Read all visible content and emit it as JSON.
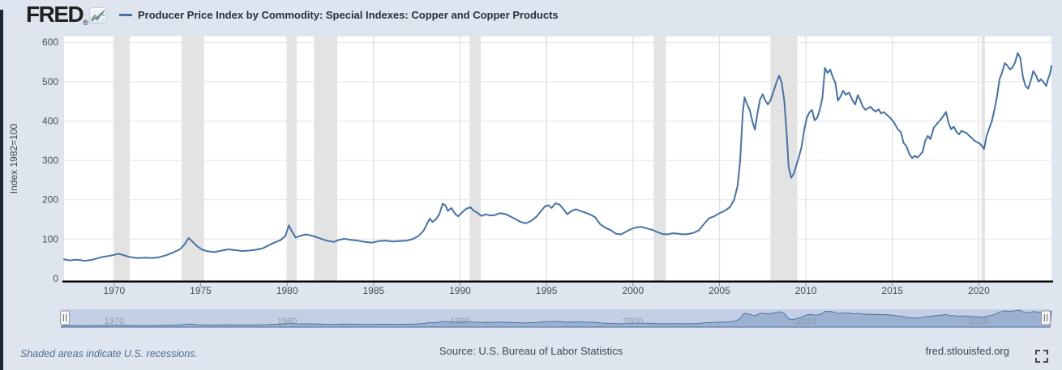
{
  "header": {
    "brand": "FRED",
    "registered_mark": "®",
    "legend_label": "Producer Price Index by Commodity: Special Indexes: Copper and Copper Products"
  },
  "footer": {
    "recession_note": "Shaded areas indicate U.S. recessions.",
    "source": "Source: U.S. Bureau of Labor Statistics",
    "site": "fred.stlouisfed.org"
  },
  "icons": {
    "brand_icon": "sparkline-chart-icon",
    "footer_icon": "fullscreen-expand-icon",
    "navigator_handles": "drag-handle-icon"
  },
  "colors": {
    "page_bg": "#dfe5ee",
    "plot_bg": "#ffffff",
    "line": "#4572a7",
    "recession": "#e3e3e3",
    "gridline": "#e4e4e4",
    "axis_line": "#000000",
    "tick_label": "#484f57",
    "axis_title": "#3d4852",
    "nav_track": "#c2cfe4",
    "nav_fill": "#8fa7cb",
    "nav_line": "#4e73a6",
    "nav_label": "#8b93a0",
    "left_bar": "#1c2736",
    "spark_green": "#7aa65a",
    "spark_blue": "#5a7fa8"
  },
  "chart_data": {
    "type": "line",
    "title": "Producer Price Index by Commodity: Special Indexes: Copper and Copper Products",
    "xlabel": "",
    "ylabel": "Index 1982=100",
    "x_range": [
      1967.1,
      2024.2
    ],
    "ylim": [
      0,
      600
    ],
    "y_ticks": [
      0,
      100,
      200,
      300,
      400,
      500,
      600
    ],
    "x_ticks": [
      1970,
      1975,
      1980,
      1985,
      1990,
      1995,
      2000,
      2005,
      2010,
      2015,
      2020
    ],
    "grid": true,
    "legend_position": "top-left",
    "navigator_ticks": [
      1970,
      1980,
      1990,
      2000,
      2010,
      2020
    ],
    "recessions": [
      [
        1969.95,
        1970.9
      ],
      [
        1973.9,
        1975.2
      ],
      [
        1980.05,
        1980.55
      ],
      [
        1981.55,
        1982.9
      ],
      [
        1990.55,
        1991.2
      ],
      [
        2001.2,
        2001.9
      ],
      [
        2007.95,
        2009.5
      ],
      [
        2020.15,
        2020.35
      ]
    ],
    "series": [
      {
        "name": "Producer Price Index by Commodity: Special Indexes: Copper and Copper Products",
        "points": [
          [
            1967.0,
            49
          ],
          [
            1967.25,
            47
          ],
          [
            1967.5,
            46
          ],
          [
            1967.75,
            48
          ],
          [
            1968.0,
            47
          ],
          [
            1968.25,
            45
          ],
          [
            1968.5,
            46
          ],
          [
            1968.75,
            48
          ],
          [
            1969.0,
            51
          ],
          [
            1969.33,
            55
          ],
          [
            1969.66,
            57
          ],
          [
            1970.0,
            60
          ],
          [
            1970.2,
            63
          ],
          [
            1970.5,
            60
          ],
          [
            1970.8,
            56
          ],
          [
            1971.1,
            53
          ],
          [
            1971.4,
            52
          ],
          [
            1971.8,
            53
          ],
          [
            1972.2,
            52
          ],
          [
            1972.6,
            54
          ],
          [
            1973.0,
            59
          ],
          [
            1973.4,
            66
          ],
          [
            1973.8,
            74
          ],
          [
            1974.1,
            88
          ],
          [
            1974.3,
            103
          ],
          [
            1974.5,
            95
          ],
          [
            1974.8,
            82
          ],
          [
            1975.1,
            73
          ],
          [
            1975.4,
            69
          ],
          [
            1975.8,
            67
          ],
          [
            1976.2,
            71
          ],
          [
            1976.6,
            74
          ],
          [
            1977.0,
            72
          ],
          [
            1977.4,
            70
          ],
          [
            1977.8,
            71
          ],
          [
            1978.2,
            73
          ],
          [
            1978.6,
            77
          ],
          [
            1979.0,
            86
          ],
          [
            1979.3,
            92
          ],
          [
            1979.6,
            97
          ],
          [
            1979.9,
            108
          ],
          [
            1980.1,
            135
          ],
          [
            1980.25,
            122
          ],
          [
            1980.5,
            104
          ],
          [
            1980.8,
            109
          ],
          [
            1981.1,
            112
          ],
          [
            1981.5,
            108
          ],
          [
            1981.9,
            102
          ],
          [
            1982.3,
            96
          ],
          [
            1982.7,
            93
          ],
          [
            1983.0,
            98
          ],
          [
            1983.3,
            101
          ],
          [
            1983.7,
            98
          ],
          [
            1984.1,
            96
          ],
          [
            1984.5,
            93
          ],
          [
            1984.9,
            91
          ],
          [
            1985.3,
            95
          ],
          [
            1985.7,
            96
          ],
          [
            1986.1,
            94
          ],
          [
            1986.5,
            95
          ],
          [
            1986.9,
            96
          ],
          [
            1987.3,
            101
          ],
          [
            1987.6,
            108
          ],
          [
            1987.9,
            122
          ],
          [
            1988.1,
            140
          ],
          [
            1988.25,
            152
          ],
          [
            1988.4,
            144
          ],
          [
            1988.6,
            150
          ],
          [
            1988.8,
            163
          ],
          [
            1989.0,
            190
          ],
          [
            1989.15,
            186
          ],
          [
            1989.3,
            172
          ],
          [
            1989.5,
            179
          ],
          [
            1989.7,
            165
          ],
          [
            1989.9,
            158
          ],
          [
            1990.1,
            167
          ],
          [
            1990.35,
            177
          ],
          [
            1990.6,
            181
          ],
          [
            1990.8,
            172
          ],
          [
            1991.0,
            167
          ],
          [
            1991.25,
            159
          ],
          [
            1991.5,
            163
          ],
          [
            1991.75,
            160
          ],
          [
            1992.0,
            161
          ],
          [
            1992.3,
            166
          ],
          [
            1992.6,
            164
          ],
          [
            1992.9,
            158
          ],
          [
            1993.2,
            151
          ],
          [
            1993.5,
            144
          ],
          [
            1993.8,
            140
          ],
          [
            1994.1,
            146
          ],
          [
            1994.4,
            156
          ],
          [
            1994.7,
            172
          ],
          [
            1994.9,
            183
          ],
          [
            1995.1,
            186
          ],
          [
            1995.3,
            179
          ],
          [
            1995.5,
            191
          ],
          [
            1995.75,
            188
          ],
          [
            1996.0,
            175
          ],
          [
            1996.2,
            163
          ],
          [
            1996.45,
            172
          ],
          [
            1996.7,
            176
          ],
          [
            1996.95,
            172
          ],
          [
            1997.2,
            168
          ],
          [
            1997.5,
            163
          ],
          [
            1997.8,
            156
          ],
          [
            1998.1,
            138
          ],
          [
            1998.4,
            129
          ],
          [
            1998.7,
            123
          ],
          [
            1999.0,
            114
          ],
          [
            1999.3,
            112
          ],
          [
            1999.6,
            119
          ],
          [
            1999.9,
            126
          ],
          [
            2000.2,
            130
          ],
          [
            2000.5,
            131
          ],
          [
            2000.8,
            127
          ],
          [
            2001.1,
            124
          ],
          [
            2001.4,
            118
          ],
          [
            2001.7,
            113
          ],
          [
            2002.0,
            112
          ],
          [
            2002.3,
            115
          ],
          [
            2002.6,
            114
          ],
          [
            2002.9,
            112
          ],
          [
            2003.2,
            113
          ],
          [
            2003.5,
            116
          ],
          [
            2003.8,
            122
          ],
          [
            2004.1,
            138
          ],
          [
            2004.4,
            153
          ],
          [
            2004.7,
            158
          ],
          [
            2005.0,
            166
          ],
          [
            2005.3,
            172
          ],
          [
            2005.6,
            181
          ],
          [
            2005.85,
            200
          ],
          [
            2006.05,
            235
          ],
          [
            2006.2,
            300
          ],
          [
            2006.35,
            420
          ],
          [
            2006.45,
            460
          ],
          [
            2006.6,
            442
          ],
          [
            2006.75,
            428
          ],
          [
            2006.9,
            400
          ],
          [
            2007.05,
            378
          ],
          [
            2007.2,
            420
          ],
          [
            2007.35,
            455
          ],
          [
            2007.5,
            468
          ],
          [
            2007.65,
            452
          ],
          [
            2007.8,
            442
          ],
          [
            2007.95,
            452
          ],
          [
            2008.1,
            472
          ],
          [
            2008.3,
            498
          ],
          [
            2008.45,
            515
          ],
          [
            2008.6,
            498
          ],
          [
            2008.75,
            452
          ],
          [
            2008.9,
            362
          ],
          [
            2009.0,
            283
          ],
          [
            2009.15,
            256
          ],
          [
            2009.3,
            266
          ],
          [
            2009.45,
            288
          ],
          [
            2009.6,
            310
          ],
          [
            2009.75,
            335
          ],
          [
            2009.9,
            378
          ],
          [
            2010.05,
            408
          ],
          [
            2010.2,
            422
          ],
          [
            2010.35,
            428
          ],
          [
            2010.5,
            402
          ],
          [
            2010.65,
            408
          ],
          [
            2010.8,
            428
          ],
          [
            2010.95,
            458
          ],
          [
            2011.1,
            535
          ],
          [
            2011.25,
            522
          ],
          [
            2011.4,
            531
          ],
          [
            2011.55,
            512
          ],
          [
            2011.7,
            497
          ],
          [
            2011.85,
            452
          ],
          [
            2012.0,
            462
          ],
          [
            2012.15,
            477
          ],
          [
            2012.3,
            467
          ],
          [
            2012.5,
            472
          ],
          [
            2012.7,
            452
          ],
          [
            2012.85,
            442
          ],
          [
            2013.0,
            466
          ],
          [
            2013.15,
            452
          ],
          [
            2013.3,
            436
          ],
          [
            2013.45,
            428
          ],
          [
            2013.6,
            433
          ],
          [
            2013.75,
            436
          ],
          [
            2013.9,
            428
          ],
          [
            2014.05,
            424
          ],
          [
            2014.2,
            430
          ],
          [
            2014.35,
            419
          ],
          [
            2014.5,
            423
          ],
          [
            2014.7,
            415
          ],
          [
            2014.9,
            407
          ],
          [
            2015.1,
            396
          ],
          [
            2015.3,
            380
          ],
          [
            2015.5,
            371
          ],
          [
            2015.65,
            344
          ],
          [
            2015.8,
            337
          ],
          [
            2016.0,
            314
          ],
          [
            2016.15,
            306
          ],
          [
            2016.3,
            312
          ],
          [
            2016.45,
            307
          ],
          [
            2016.6,
            314
          ],
          [
            2016.75,
            322
          ],
          [
            2016.9,
            350
          ],
          [
            2017.05,
            362
          ],
          [
            2017.2,
            354
          ],
          [
            2017.4,
            383
          ],
          [
            2017.6,
            394
          ],
          [
            2017.8,
            404
          ],
          [
            2017.95,
            413
          ],
          [
            2018.1,
            423
          ],
          [
            2018.25,
            395
          ],
          [
            2018.4,
            379
          ],
          [
            2018.55,
            386
          ],
          [
            2018.7,
            373
          ],
          [
            2018.85,
            366
          ],
          [
            2019.0,
            375
          ],
          [
            2019.15,
            372
          ],
          [
            2019.3,
            369
          ],
          [
            2019.45,
            362
          ],
          [
            2019.6,
            357
          ],
          [
            2019.75,
            350
          ],
          [
            2019.9,
            346
          ],
          [
            2020.05,
            343
          ],
          [
            2020.2,
            335
          ],
          [
            2020.3,
            329
          ],
          [
            2020.45,
            362
          ],
          [
            2020.6,
            381
          ],
          [
            2020.75,
            399
          ],
          [
            2020.9,
            428
          ],
          [
            2021.05,
            462
          ],
          [
            2021.2,
            506
          ],
          [
            2021.35,
            524
          ],
          [
            2021.5,
            547
          ],
          [
            2021.65,
            541
          ],
          [
            2021.8,
            531
          ],
          [
            2021.95,
            536
          ],
          [
            2022.1,
            549
          ],
          [
            2022.25,
            573
          ],
          [
            2022.4,
            560
          ],
          [
            2022.55,
            512
          ],
          [
            2022.7,
            489
          ],
          [
            2022.85,
            482
          ],
          [
            2023.0,
            502
          ],
          [
            2023.15,
            527
          ],
          [
            2023.3,
            516
          ],
          [
            2023.45,
            500
          ],
          [
            2023.6,
            506
          ],
          [
            2023.75,
            498
          ],
          [
            2023.9,
            489
          ],
          [
            2024.0,
            506
          ],
          [
            2024.1,
            518
          ],
          [
            2024.2,
            540
          ]
        ]
      }
    ]
  }
}
